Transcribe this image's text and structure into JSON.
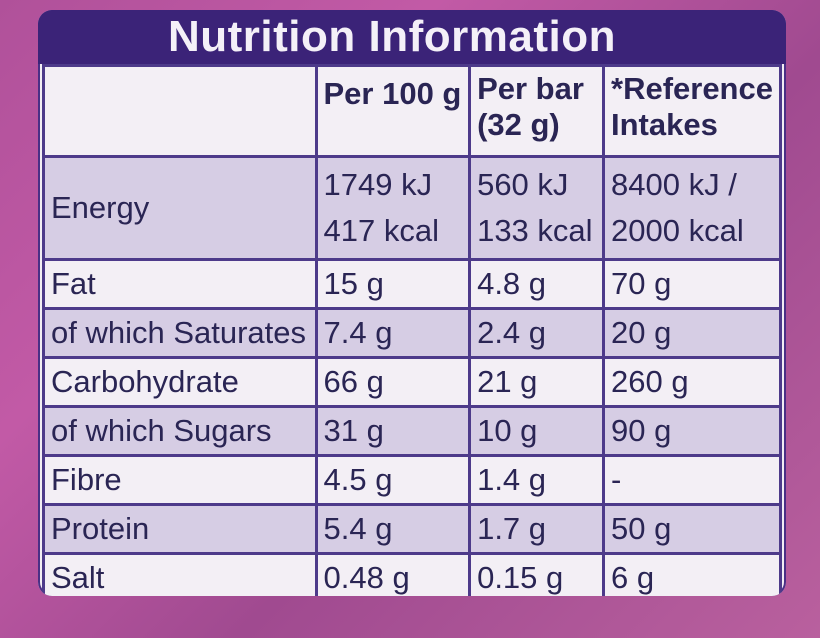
{
  "title": "Nutrition Information",
  "columns": [
    "",
    "Per 100 g",
    "Per bar\n(32 g)",
    "*Reference\nIntakes"
  ],
  "column_lines": [
    [
      ""
    ],
    [
      "Per 100 g"
    ],
    [
      "Per bar",
      "(32 g)"
    ],
    [
      "*Reference",
      "Intakes"
    ]
  ],
  "energy": {
    "label": "Energy",
    "per100": [
      "1749 kJ",
      "417 kcal"
    ],
    "perbar": [
      "560 kJ",
      "133 kcal"
    ],
    "ri": [
      "8400 kJ /",
      "2000 kcal"
    ]
  },
  "rows": [
    {
      "label": "Fat",
      "per100": "15 g",
      "perbar": "4.8 g",
      "ri": "70 g"
    },
    {
      "label": "of which Saturates",
      "per100": "7.4 g",
      "perbar": "2.4 g",
      "ri": "20 g"
    },
    {
      "label": "Carbohydrate",
      "per100": "66 g",
      "perbar": "21 g",
      "ri": "260 g"
    },
    {
      "label": "of which Sugars",
      "per100": "31 g",
      "perbar": "10 g",
      "ri": "90 g"
    },
    {
      "label": "Fibre",
      "per100": "4.5 g",
      "perbar": "1.4 g",
      "ri": "-"
    },
    {
      "label": "Protein",
      "per100": "5.4 g",
      "perbar": "1.7 g",
      "ri": "50 g"
    },
    {
      "label": "Salt",
      "per100": "0.48 g",
      "perbar": "0.15 g",
      "ri": "6 g"
    }
  ]
}
